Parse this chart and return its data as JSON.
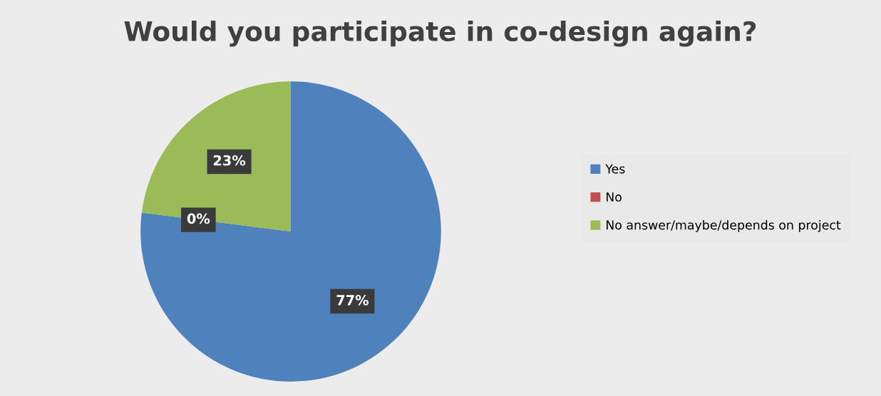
{
  "chart_data": {
    "type": "pie",
    "title": "Would you participate in co-design again?",
    "categories": [
      "Yes",
      "No",
      "No answer/maybe/depends on project"
    ],
    "values": [
      77,
      0,
      23
    ],
    "colors": [
      "#4f81bd",
      "#c0504d",
      "#9bbb59"
    ],
    "value_labels": [
      "77%",
      "0%",
      "23%"
    ],
    "legend": "right"
  }
}
